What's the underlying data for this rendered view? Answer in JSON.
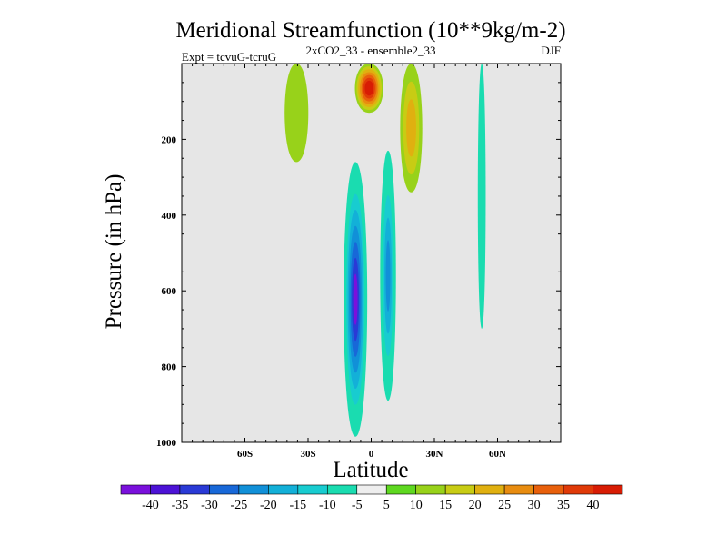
{
  "chart_data": {
    "type": "heatmap",
    "title": "Meridional Streamfunction (10**9kg/m-2)",
    "subtitle_left": "Expt = tcvuG-tcruG",
    "subtitle_center": "2xCO2_33 - ensemble2_33",
    "subtitle_right": "DJF",
    "xlabel": "Latitude",
    "ylabel": "Pressure (in hPa)",
    "xlim": [
      -90,
      90
    ],
    "ylim": [
      1000,
      0
    ],
    "x_ticks": [
      {
        "value": -60,
        "label": "60S"
      },
      {
        "value": -30,
        "label": "30S"
      },
      {
        "value": 0,
        "label": "0"
      },
      {
        "value": 30,
        "label": "30N"
      },
      {
        "value": 60,
        "label": "60N"
      }
    ],
    "y_ticks": [
      {
        "value": 200,
        "label": "200"
      },
      {
        "value": 400,
        "label": "400"
      },
      {
        "value": 600,
        "label": "600"
      },
      {
        "value": 800,
        "label": "800"
      },
      {
        "value": 1000,
        "label": "1000"
      }
    ],
    "background_color": "#e6e6e6",
    "colorbar": {
      "labels": [
        "-40",
        "-35",
        "-30",
        "-25",
        "-20",
        "-15",
        "-10",
        "-5",
        "5",
        "10",
        "15",
        "20",
        "25",
        "30",
        "35",
        "40"
      ],
      "colors": [
        "#7a10dc",
        "#4c12d6",
        "#2a3ad6",
        "#1868d8",
        "#1190d8",
        "#13b0d8",
        "#18ccd0",
        "#1adcb0",
        "#eeeeee",
        "#5ed820",
        "#98d21a",
        "#c8cc14",
        "#e0b010",
        "#e88c10",
        "#e8600c",
        "#e03a08",
        "#d81c04"
      ]
    },
    "regions": [
      {
        "name": "SH negative cell",
        "level": -40,
        "x": [
          -15,
          0
        ],
        "p": [
          260,
          985
        ]
      },
      {
        "name": "Equatorial-north negative cell",
        "level": -25,
        "x": [
          3,
          13
        ],
        "p": [
          230,
          890
        ]
      },
      {
        "name": "Upper tropical positive maximum",
        "level": 40,
        "x": [
          -10,
          8
        ],
        "p": [
          0,
          130
        ]
      },
      {
        "name": "NH subtropical positive band",
        "level": 15,
        "x": [
          12,
          26
        ],
        "p": [
          0,
          340
        ]
      },
      {
        "name": "SH subtropical positive band",
        "level": 5,
        "x": [
          -43,
          -28
        ],
        "p": [
          0,
          260
        ]
      },
      {
        "name": "NH midlatitude negative band",
        "level": -5,
        "x": [
          50,
          55
        ],
        "p": [
          0,
          700
        ]
      }
    ]
  }
}
